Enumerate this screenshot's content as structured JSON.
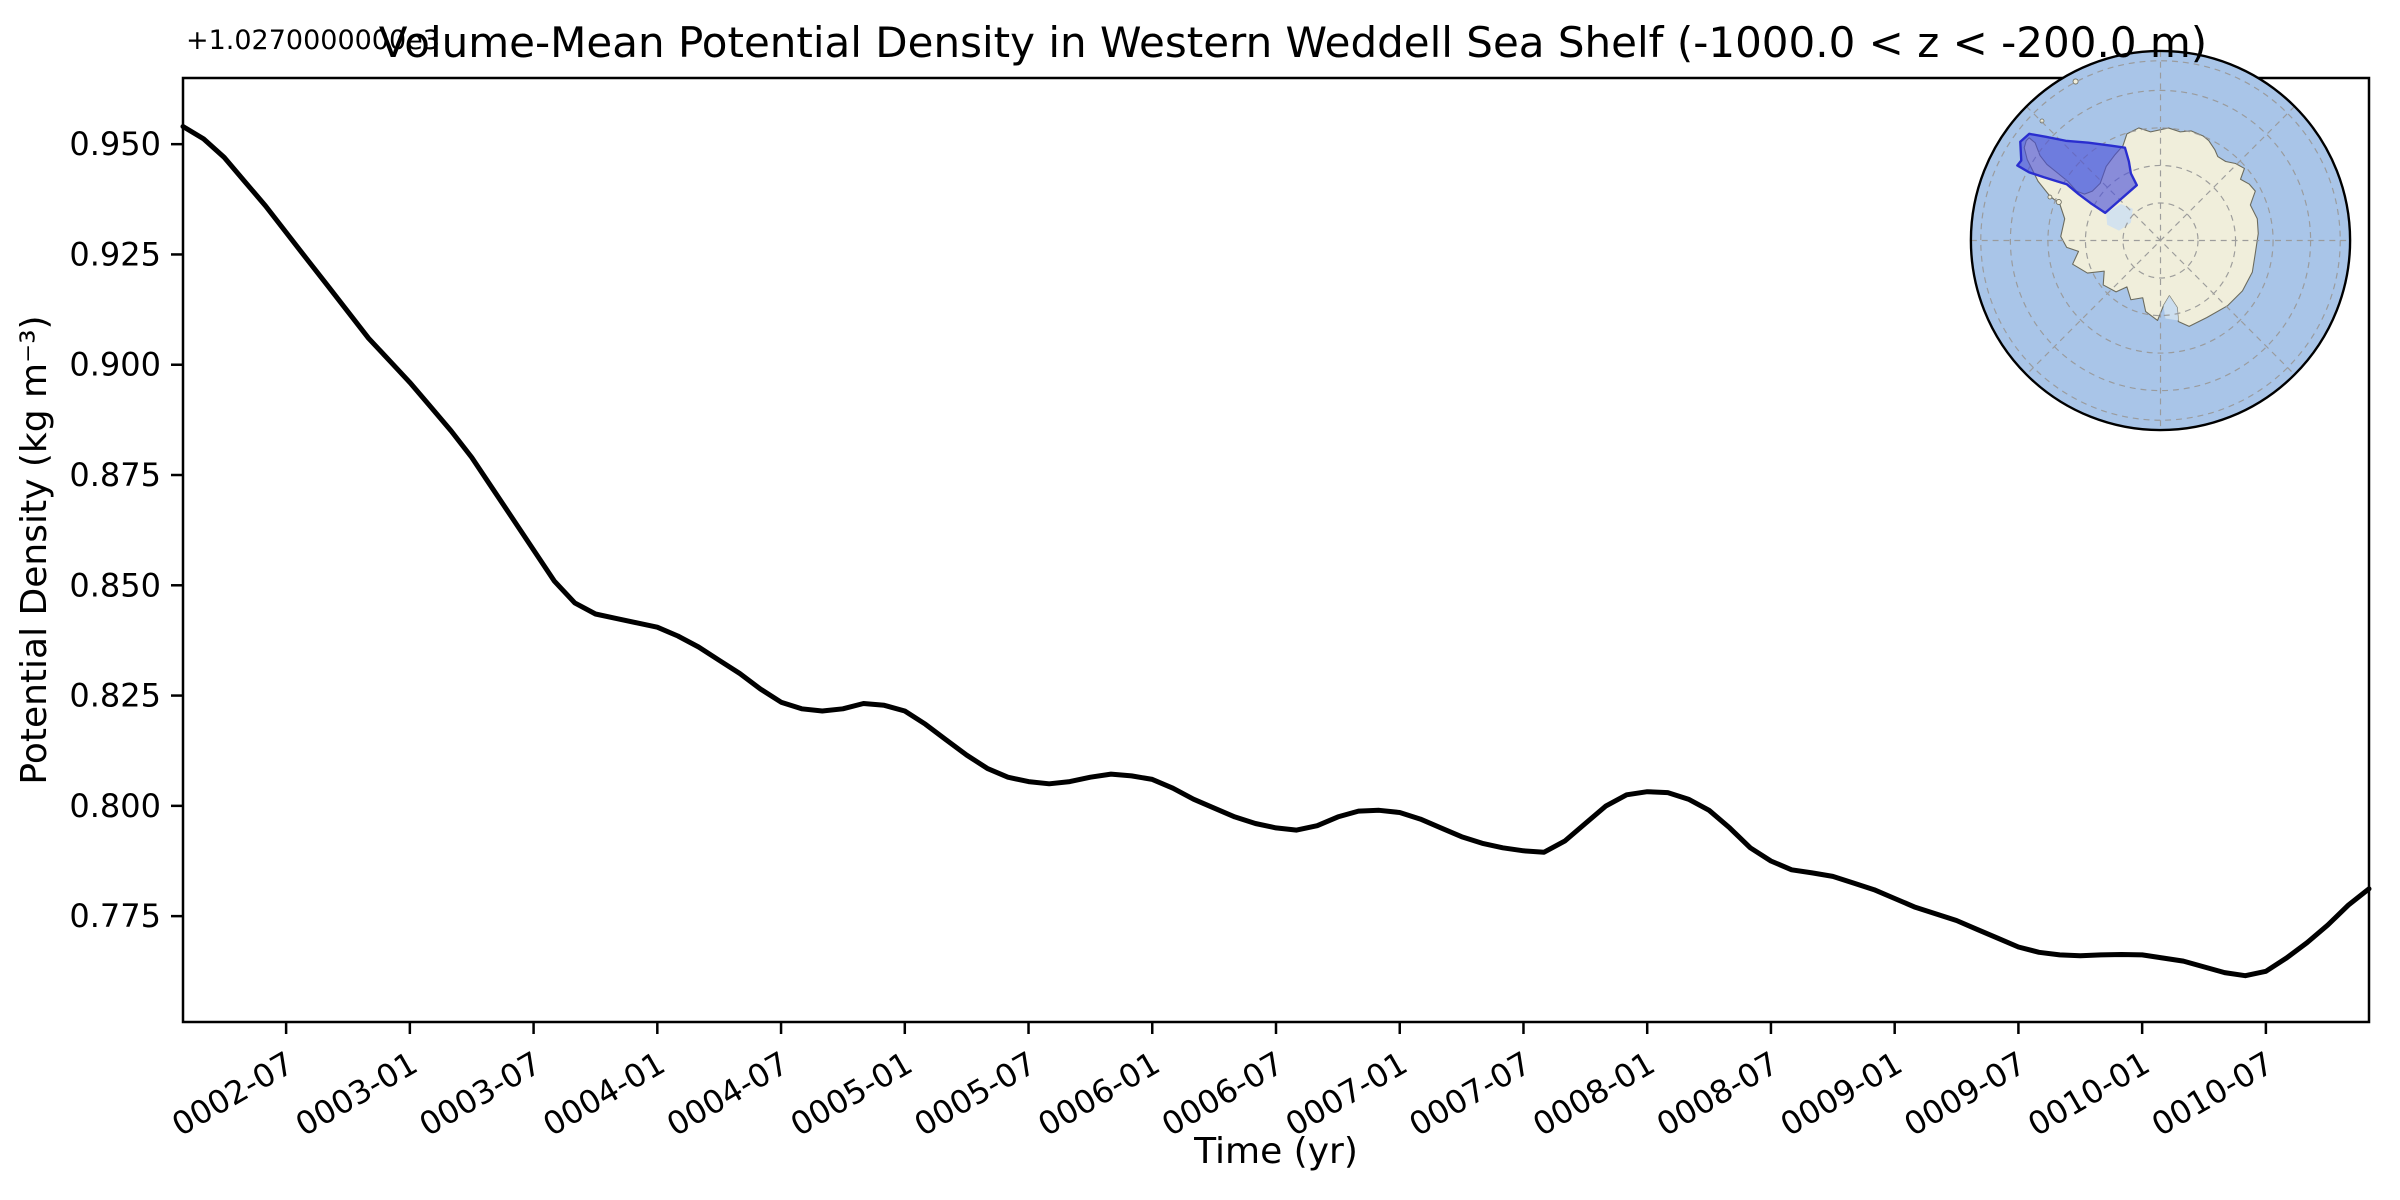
{
  "title": "Volume-Mean Potential Density in Western Weddell Sea Shelf (-1000.0 < z < -200.0 m)",
  "y_axis": {
    "offset_text": "+1.0270000000e3",
    "label": "Potential Density (kg m⁻³)",
    "tick_labels": [
      "0.950",
      "0.925",
      "0.900",
      "0.875",
      "0.850",
      "0.825",
      "0.800",
      "0.775"
    ]
  },
  "x_axis": {
    "label": "Time (yr)",
    "tick_labels": [
      "0002-07",
      "0003-01",
      "0003-07",
      "0004-01",
      "0004-07",
      "0005-01",
      "0005-07",
      "0006-01",
      "0006-07",
      "0007-01",
      "0007-07",
      "0008-01",
      "0008-07",
      "0009-01",
      "0009-07",
      "0010-01",
      "0010-07"
    ]
  },
  "chart_data": {
    "type": "line",
    "title": "Volume-Mean Potential Density in Western Weddell Sea Shelf (-1000.0 < z < -200.0 m)",
    "xlabel": "Time (yr)",
    "ylabel": "Potential Density (kg m⁻³)",
    "y_offset": 1027.0,
    "ylim_relative_to_offset": [
      0.751,
      0.965
    ],
    "grid": false,
    "legend": "none",
    "line_color": "#000000",
    "line_width": 5,
    "x_monthly": [
      "0002-02",
      "0002-03",
      "0002-04",
      "0002-05",
      "0002-06",
      "0002-07",
      "0002-08",
      "0002-09",
      "0002-10",
      "0002-11",
      "0002-12",
      "0003-01",
      "0003-02",
      "0003-03",
      "0003-04",
      "0003-05",
      "0003-06",
      "0003-07",
      "0003-08",
      "0003-09",
      "0003-10",
      "0003-11",
      "0003-12",
      "0004-01",
      "0004-02",
      "0004-03",
      "0004-04",
      "0004-05",
      "0004-06",
      "0004-07",
      "0004-08",
      "0004-09",
      "0004-10",
      "0004-11",
      "0004-12",
      "0005-01",
      "0005-02",
      "0005-03",
      "0005-04",
      "0005-05",
      "0005-06",
      "0005-07",
      "0005-08",
      "0005-09",
      "0005-10",
      "0005-11",
      "0005-12",
      "0006-01",
      "0006-02",
      "0006-03",
      "0006-04",
      "0006-05",
      "0006-06",
      "0006-07",
      "0006-08",
      "0006-09",
      "0006-10",
      "0006-11",
      "0006-12",
      "0007-01",
      "0007-02",
      "0007-03",
      "0007-04",
      "0007-05",
      "0007-06",
      "0007-07",
      "0007-08",
      "0007-09",
      "0007-10",
      "0007-11",
      "0007-12",
      "0008-01",
      "0008-02",
      "0008-03",
      "0008-04",
      "0008-05",
      "0008-06",
      "0008-07",
      "0008-08",
      "0008-09",
      "0008-10",
      "0008-11",
      "0008-12",
      "0009-01",
      "0009-02",
      "0009-03",
      "0009-04",
      "0009-05",
      "0009-06",
      "0009-07",
      "0009-08",
      "0009-09",
      "0009-10",
      "0009-11",
      "0009-12",
      "0010-01",
      "0010-02",
      "0010-03",
      "0010-04",
      "0010-05",
      "0010-06",
      "0010-07",
      "0010-08",
      "0010-09",
      "0010-10",
      "0010-11",
      "0010-12"
    ],
    "values_relative_to_offset": [
      0.954,
      0.9512,
      0.947,
      0.9415,
      0.936,
      0.93,
      0.924,
      0.918,
      0.912,
      0.906,
      0.901,
      0.896,
      0.8905,
      0.885,
      0.879,
      0.872,
      0.865,
      0.858,
      0.851,
      0.846,
      0.8435,
      0.8425,
      0.8415,
      0.8405,
      0.8385,
      0.836,
      0.833,
      0.83,
      0.8265,
      0.8235,
      0.822,
      0.8215,
      0.822,
      0.8232,
      0.8228,
      0.8215,
      0.8185,
      0.815,
      0.8115,
      0.8085,
      0.8065,
      0.8055,
      0.805,
      0.8055,
      0.8065,
      0.8072,
      0.8068,
      0.806,
      0.804,
      0.8015,
      0.7995,
      0.7975,
      0.796,
      0.795,
      0.7945,
      0.7955,
      0.7975,
      0.7988,
      0.799,
      0.7985,
      0.797,
      0.795,
      0.793,
      0.7915,
      0.7905,
      0.7898,
      0.7895,
      0.792,
      0.796,
      0.8,
      0.8025,
      0.8032,
      0.803,
      0.8015,
      0.799,
      0.795,
      0.7905,
      0.7875,
      0.7855,
      0.7848,
      0.784,
      0.7825,
      0.781,
      0.779,
      0.777,
      0.7755,
      0.774,
      0.772,
      0.77,
      0.768,
      0.7668,
      0.7662,
      0.766,
      0.7662,
      0.7663,
      0.7662,
      0.7655,
      0.7648,
      0.7635,
      0.7622,
      0.7615,
      0.7625,
      0.7655,
      0.769,
      0.773,
      0.7775,
      0.7812
    ],
    "x_tick_labels": [
      "0002-07",
      "0003-01",
      "0003-07",
      "0004-01",
      "0004-07",
      "0005-01",
      "0005-07",
      "0006-01",
      "0006-07",
      "0007-01",
      "0007-07",
      "0008-01",
      "0008-07",
      "0009-01",
      "0009-07",
      "0010-01",
      "0010-07"
    ],
    "x_tick_month_indices": [
      5,
      11,
      17,
      23,
      29,
      35,
      41,
      47,
      53,
      59,
      65,
      71,
      77,
      83,
      89,
      95,
      101
    ],
    "y_tick_values_relative": [
      0.95,
      0.925,
      0.9,
      0.875,
      0.85,
      0.825,
      0.8,
      0.775
    ]
  },
  "inset_map": {
    "kind": "south-polar-stereographic-map",
    "ocean_color": "#a9c5e8",
    "land_color": "#f0eedb",
    "ice_shelf_color": "#cfe0ef",
    "coast_color": "#6b6b5e",
    "grid_color": "#999999",
    "boundary_color": "#000000",
    "region_fill": "#4a4fd8",
    "region_fill_opacity": "0.62",
    "region_edge": "#2a2ecf"
  }
}
